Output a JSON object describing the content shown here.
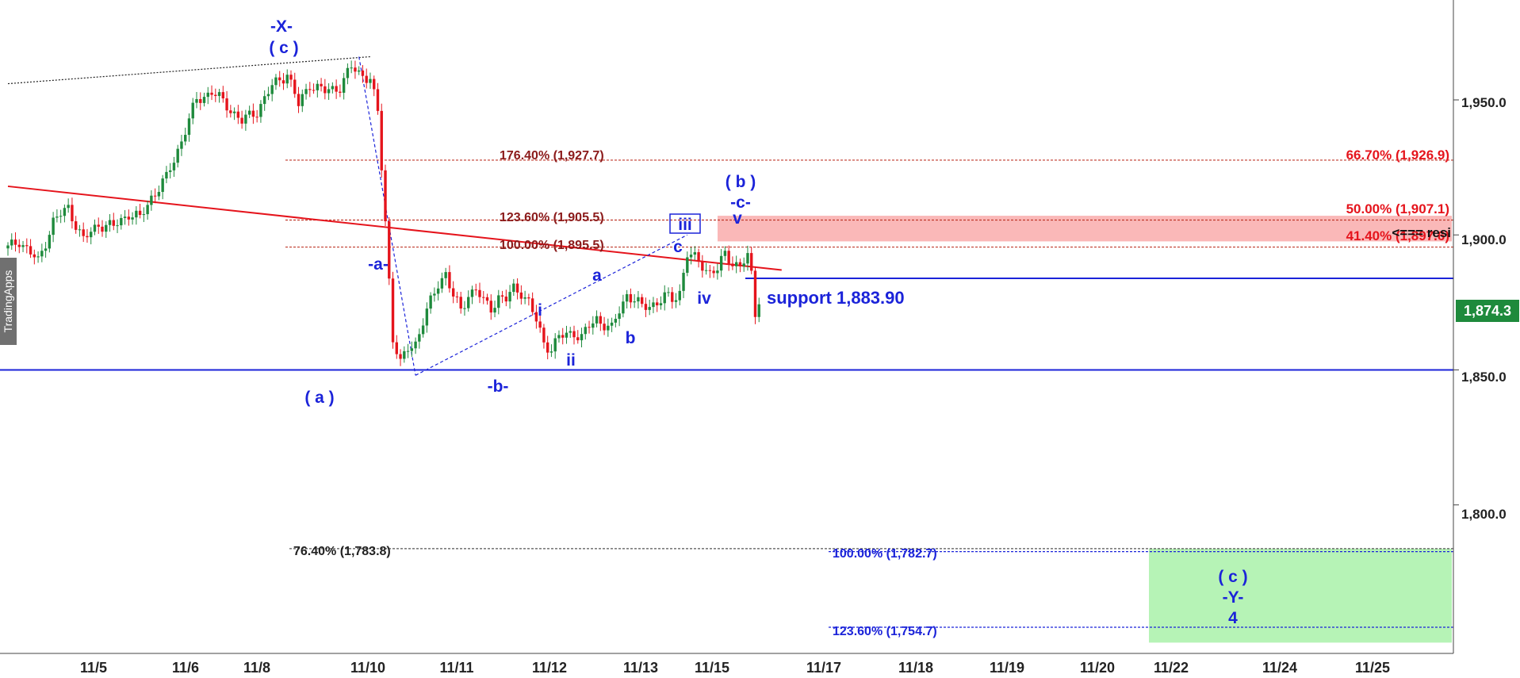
{
  "colors": {
    "up": "#1e8a3c",
    "down": "#e5141c",
    "blue": "#1b23d9",
    "fib_dark": "#8b1a1a",
    "resistance_zone": "#fab4b4",
    "target_zone": "#b2f2b2",
    "last_price_bg": "#1e8a3c"
  },
  "watermark": "TradingApps",
  "chart_data": {
    "type": "candlestick",
    "title": "",
    "x_ticks": [
      "11/5",
      "11/6",
      "11/8",
      "11/10",
      "11/11",
      "11/12",
      "11/13",
      "11/15",
      "11/17",
      "11/18",
      "11/19",
      "11/20",
      "11/22",
      "11/24",
      "11/25"
    ],
    "y_ticks": [
      "1,800.0",
      "1,850.0",
      "1,900.0",
      "1,950.0"
    ],
    "y_range": [
      1745,
      1987
    ],
    "last_price": "1,874.3",
    "last_price_value": 1874.3,
    "price_path": [
      [
        0,
        1895
      ],
      [
        3,
        1898
      ],
      [
        8,
        1890
      ],
      [
        12,
        1905
      ],
      [
        16,
        1910
      ],
      [
        20,
        1898
      ],
      [
        24,
        1904
      ],
      [
        28,
        1903
      ],
      [
        32,
        1908
      ],
      [
        35,
        1906
      ],
      [
        38,
        1914
      ],
      [
        42,
        1921
      ],
      [
        46,
        1935
      ],
      [
        50,
        1950
      ],
      [
        54,
        1953
      ],
      [
        58,
        1948
      ],
      [
        62,
        1942
      ],
      [
        66,
        1946
      ],
      [
        70,
        1955
      ],
      [
        74,
        1960
      ],
      [
        77,
        1948
      ],
      [
        80,
        1956
      ],
      [
        84,
        1953
      ],
      [
        88,
        1955
      ],
      [
        91,
        1962
      ],
      [
        93,
        1960
      ],
      [
        96,
        1958
      ],
      [
        98,
        1945
      ],
      [
        100,
        1905
      ],
      [
        102,
        1862
      ],
      [
        104,
        1852
      ],
      [
        106,
        1858
      ],
      [
        108,
        1860
      ],
      [
        110,
        1868
      ],
      [
        112,
        1875
      ],
      [
        114,
        1882
      ],
      [
        116,
        1886
      ],
      [
        118,
        1877
      ],
      [
        120,
        1872
      ],
      [
        122,
        1878
      ],
      [
        124,
        1880
      ],
      [
        126,
        1875
      ],
      [
        128,
        1873
      ],
      [
        130,
        1877
      ],
      [
        132,
        1876
      ],
      [
        134,
        1880
      ],
      [
        136,
        1879
      ],
      [
        138,
        1875
      ],
      [
        140,
        1868
      ],
      [
        142,
        1860
      ],
      [
        144,
        1858
      ],
      [
        146,
        1862
      ],
      [
        148,
        1863
      ],
      [
        150,
        1864
      ],
      [
        152,
        1862
      ],
      [
        154,
        1866
      ],
      [
        156,
        1869
      ],
      [
        158,
        1867
      ],
      [
        160,
        1865
      ],
      [
        162,
        1872
      ],
      [
        164,
        1878
      ],
      [
        166,
        1876
      ],
      [
        168,
        1873
      ],
      [
        170,
        1874
      ],
      [
        172,
        1875
      ],
      [
        174,
        1877
      ],
      [
        176,
        1876
      ],
      [
        178,
        1879
      ],
      [
        180,
        1893
      ],
      [
        182,
        1891
      ],
      [
        184,
        1889
      ],
      [
        186,
        1886
      ],
      [
        188,
        1887
      ],
      [
        190,
        1893
      ],
      [
        192,
        1890
      ],
      [
        194,
        1888
      ],
      [
        196,
        1892
      ],
      [
        197,
        1885
      ],
      [
        198,
        1871
      ],
      [
        199,
        1874
      ]
    ],
    "horizontal_levels": [
      {
        "value": 1850,
        "color": "#1b23d9",
        "style": "solid"
      },
      {
        "value": 1883.9,
        "color": "#1b23d9",
        "style": "solid"
      },
      {
        "value": 1927.7,
        "color": "#c0392b",
        "style": "dashed"
      },
      {
        "value": 1905.5,
        "color": "#c0392b",
        "style": "dashed"
      },
      {
        "value": 1895.5,
        "color": "#c0392b",
        "style": "dashed"
      },
      {
        "value": 1783.8,
        "color": "#555555",
        "style": "dashed"
      },
      {
        "value": 1782.7,
        "color": "#1b23d9",
        "style": "dashed"
      },
      {
        "value": 1754.7,
        "color": "#1b23d9",
        "style": "dashed"
      }
    ],
    "trendlines": [
      {
        "from": [
          0,
          1956
        ],
        "to": [
          96,
          1966
        ],
        "color": "#222222",
        "style": "dotted"
      },
      {
        "from": [
          0,
          1918
        ],
        "to": [
          205,
          1887
        ],
        "color": "#e5141c",
        "style": "solid"
      },
      {
        "from": [
          108,
          1848
        ],
        "to": [
          180,
          1900
        ],
        "color": "#1b23d9",
        "style": "dashed"
      },
      {
        "from": [
          93,
          1966
        ],
        "to": [
          108,
          1848
        ],
        "color": "#1b23d9",
        "style": "dashed"
      }
    ],
    "zones": [
      {
        "name": "resistance",
        "y_top": 1907.1,
        "y_bottom": 1897.6,
        "color": "#fab4b4"
      },
      {
        "name": "target",
        "y_top": 1783.8,
        "y_bottom": 1749,
        "color": "#b2f2b2"
      }
    ],
    "fib_labels": [
      {
        "text": "176.40% (1,927.7)",
        "value": 1927.7,
        "class": "fibdark"
      },
      {
        "text": "123.60% (1,905.5)",
        "value": 1905.5,
        "class": "fibdark"
      },
      {
        "text": "100.00% (1,895.5)",
        "value": 1895.5,
        "class": "fibdark"
      },
      {
        "text": "66.70% (1,926.9)",
        "value": 1926.9,
        "class": "fibred"
      },
      {
        "text": "50.00% (1,907.1)",
        "value": 1907.1,
        "class": "fibred"
      },
      {
        "text": "41.40% (1,897.6)",
        "value": 1897.6,
        "class": "fibred"
      },
      {
        "text": "76.40% (1,783.8)",
        "value": 1783.8,
        "class": "fibblack"
      },
      {
        "text": "100.00% (1,782.7)",
        "value": 1782.7,
        "class": "fibblue"
      },
      {
        "text": "123.60% (1,754.7)",
        "value": 1754.7,
        "class": "fibblue"
      }
    ],
    "annotations": {
      "resistance": "<=== resi",
      "support": "support 1,883.90"
    },
    "wave_labels": [
      "-X-",
      "( c )",
      "( a )",
      "-a-",
      "-b-",
      "i",
      "ii",
      "a",
      "b",
      "c",
      "iii",
      "iv",
      "v",
      "-c-",
      "( b )",
      "( c )",
      "-Y-",
      "4"
    ]
  }
}
